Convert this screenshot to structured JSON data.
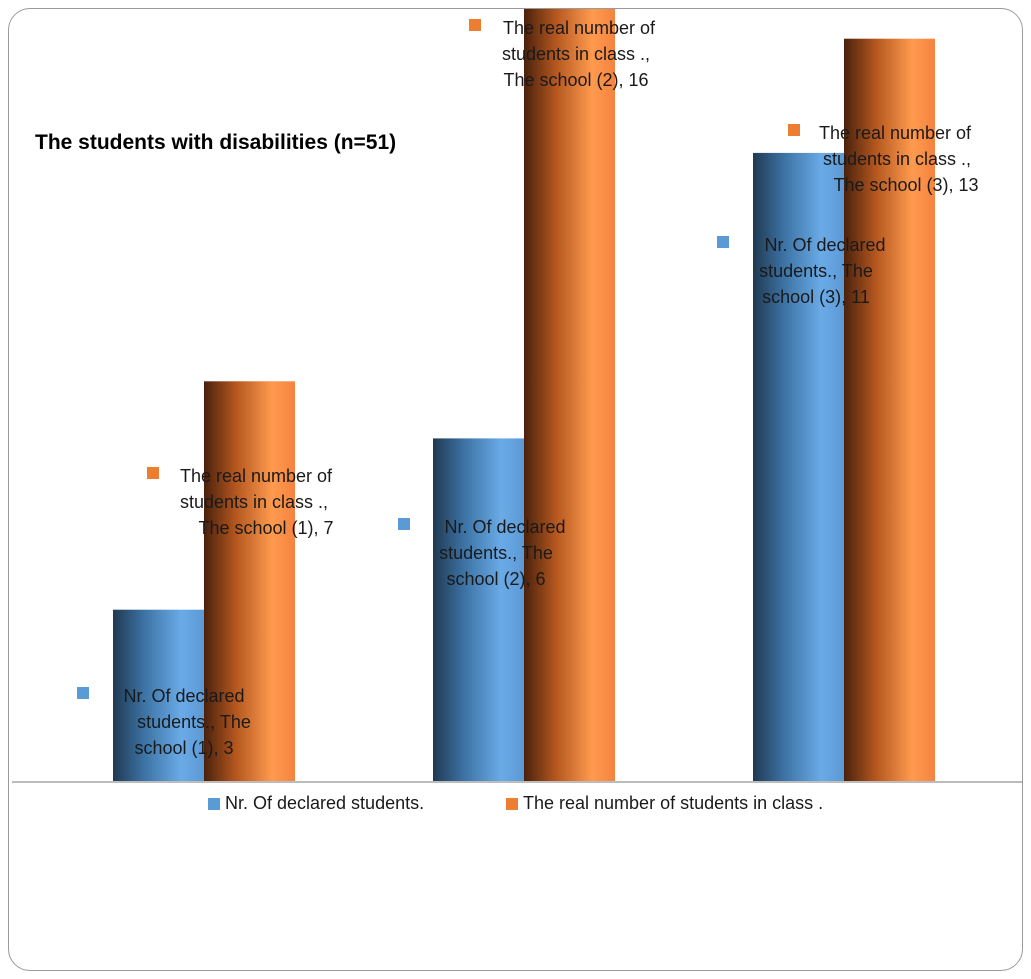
{
  "chart_data": {
    "type": "bar",
    "title": "The students with disabilities   (n=51)",
    "xlabel": "",
    "ylabel": "",
    "categories": [
      "The school (1)",
      "The school (2)",
      "The school (3)"
    ],
    "series": [
      {
        "name": "Nr. Of declared students.",
        "color": "#5b9bd5",
        "values": [
          3,
          6,
          11
        ],
        "data_labels": [
          [
            "Nr. Of declared",
            "students., The",
            "school (1), 3"
          ],
          [
            "Nr. Of declared",
            "students., The",
            "school (2), 6"
          ],
          [
            "Nr. Of declared",
            "students., The",
            "school (3), 11"
          ]
        ]
      },
      {
        "name": "The real number of students in class .",
        "color": "#ed7d31",
        "values": [
          7,
          16,
          13
        ],
        "data_labels": [
          [
            "The real number of",
            "students in class .,",
            "The school (1), 7"
          ],
          [
            "The real number of",
            "students in class .,",
            "The school (2), 16"
          ],
          [
            "The real number of",
            "students in class .,",
            "The school (3), 13"
          ]
        ]
      }
    ],
    "ylim": [
      0,
      16
    ],
    "grid": false,
    "legend_position": "bottom"
  }
}
